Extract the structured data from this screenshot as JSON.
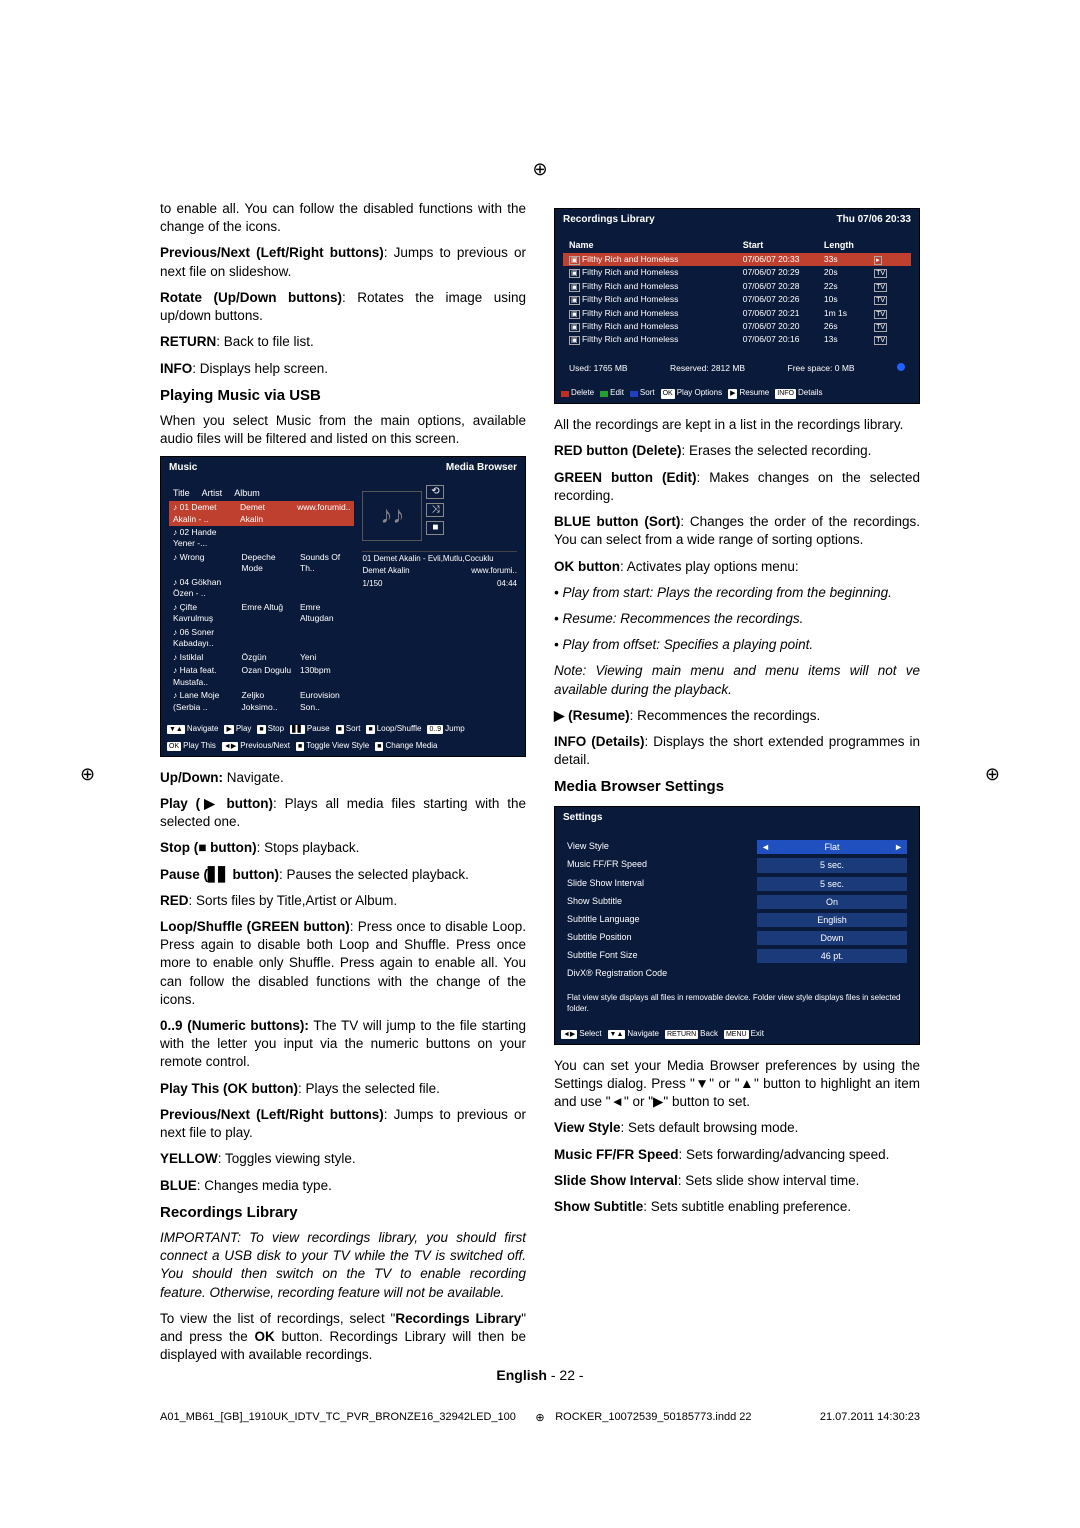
{
  "registration_mark": "⊕",
  "left_col": {
    "intro": "to enable all. You can follow the disabled functions with the change of the icons.",
    "prev_next_bold": "Previous/Next (Left/Right buttons)",
    "prev_next_text": ": Jumps to previous or next file on slideshow.",
    "rotate_bold": "Rotate (Up/Down buttons)",
    "rotate_text": ": Rotates the image using up/down buttons.",
    "return_bold": "RETURN",
    "return_text": ": Back to file list.",
    "info_bold": "INFO",
    "info_text": ": Displays help screen.",
    "heading_music": "Playing Music via USB",
    "music_intro": "When you select Music from the main options, available audio files will be filtered and listed on this screen.",
    "music_screenshot": {
      "title_left": "Music",
      "title_right": "Media Browser",
      "cols": [
        "Title",
        "Artist",
        "Album"
      ],
      "rows": [
        {
          "title": "01 Demet Akalin - ..",
          "artist": "Demet Akalin",
          "album": "www.forumid..",
          "selected": true
        },
        {
          "title": "02 Hande Yener -...",
          "artist": "",
          "album": ""
        },
        {
          "title": "Wrong",
          "artist": "Depeche Mode",
          "album": "Sounds Of Th.."
        },
        {
          "title": "04 Gökhan Özen - ..",
          "artist": "",
          "album": ""
        },
        {
          "title": "Çifte Kavrulmuş",
          "artist": "Emre Altuğ",
          "album": "Emre Altugdan"
        },
        {
          "title": "06 Soner Kabadayı..",
          "artist": "",
          "album": ""
        },
        {
          "title": "Istiklal",
          "artist": "Özgün",
          "album": "Yeni"
        },
        {
          "title": "Hata feat. Mustafa..",
          "artist": "Ozan Dogulu",
          "album": "130bpm"
        },
        {
          "title": "Lane Moje (Serbia ..",
          "artist": "Zeljko Joksimo..",
          "album": "Eurovision Son.."
        }
      ],
      "preview_title": "01 Demet Akalin - Evli,Mutlu,Cocuklu",
      "preview_artist": "Demet Akalin",
      "preview_site": "www.forumi..",
      "preview_track": "1/150",
      "preview_time": "04:44",
      "footer_items": [
        "Navigate",
        "Play",
        "Stop",
        "Pause",
        "Sort",
        "Loop/Shuffle",
        "Jump",
        "Play This",
        "Previous/Next",
        "Toggle View Style",
        "Change Media"
      ]
    },
    "updown_bold": "Up/Down:",
    "updown_text": " Navigate.",
    "play_bold": "Play (▶ button)",
    "play_text": ": Plays all media files starting with the selected one.",
    "stop_bold": "Stop (■ button)",
    "stop_text": ": Stops playback.",
    "pause_bold": "Pause (▋▋ button)",
    "pause_text": ": Pauses the selected playback.",
    "red_bold": "RED",
    "red_text": ": Sorts files by Title,Artist or Album.",
    "loop_bold": "Loop/Shuffle (GREEN button)",
    "loop_text": ": Press once to disable Loop. Press again to disable both Loop and Shuffle. Press once more to enable only Shuffle. Press again to enable all. You can follow the disabled functions with the change of the icons.",
    "num_bold": "0..9 (Numeric buttons):",
    "num_text": " The TV will jump to the file starting with the letter you input via the numeric buttons on your remote control.",
    "playthis_bold": "Play This (OK button)",
    "playthis_text": ": Plays the selected file.",
    "prevnext2_bold": "Previous/Next (Left/Right buttons)",
    "prevnext2_text": ": Jumps to previous or next file to play.",
    "yellow_bold": "YELLOW",
    "yellow_text": ": Toggles viewing style.",
    "blue_bold": "BLUE",
    "blue_text": ": Changes media type.",
    "heading_rec": "Recordings Library",
    "rec_important": "IMPORTANT: To view recordings library, you should first connect a USB disk to your TV while the TV is switched off. You should then switch on the TV to enable recording feature. Otherwise, recording feature will not be available.",
    "rec_view_text_1": "To view the list of recordings, select \"",
    "rec_view_bold": "Recordings Library",
    "rec_view_text_2": "\" and press the ",
    "rec_view_ok": "OK",
    "rec_view_text_3": " button. Recordings Library will then be displayed with available recordings."
  },
  "right_col": {
    "rec_screenshot": {
      "title": "Recordings Library",
      "date": "Thu 07/06 20:33",
      "cols": [
        "Name",
        "Start",
        "Length",
        ""
      ],
      "rows": [
        {
          "name": "Filthy Rich and Homeless",
          "start": "07/06/07  20:33",
          "len": "33s",
          "tag": "▸",
          "selected": true
        },
        {
          "name": "Filthy Rich and Homeless",
          "start": "07/06/07  20:29",
          "len": "20s",
          "tag": "TV"
        },
        {
          "name": "Filthy Rich and Homeless",
          "start": "07/06/07  20:28",
          "len": "22s",
          "tag": "TV"
        },
        {
          "name": "Filthy Rich and Homeless",
          "start": "07/06/07  20:26",
          "len": "10s",
          "tag": "TV"
        },
        {
          "name": "Filthy Rich and Homeless",
          "start": "07/06/07  20:21",
          "len": "1m 1s",
          "tag": "TV"
        },
        {
          "name": "Filthy Rich and Homeless",
          "start": "07/06/07  20:20",
          "len": "26s",
          "tag": "TV"
        },
        {
          "name": "Filthy Rich and Homeless",
          "start": "07/06/07  20:16",
          "len": "13s",
          "tag": "TV"
        }
      ],
      "used": "Used: 1765 MB",
      "reserved": "Reserved: 2812 MB",
      "free": "Free space: 0 MB",
      "footer_items": [
        "Delete",
        "Edit",
        "Sort",
        "Play Options",
        "Resume",
        "Details"
      ],
      "footer_colors": [
        "#c03020",
        "#20a030",
        "#2040c0",
        "#000",
        "#000",
        "#000"
      ],
      "footer_keys": [
        "",
        "",
        "",
        "OK",
        "▶",
        "INFO"
      ]
    },
    "all_rec": "All the recordings are kept in a list in the recordings library.",
    "red_btn_bold": "RED button (Delete)",
    "red_btn_text": ": Erases the selected recording.",
    "green_btn_bold": "GREEN button (Edit)",
    "green_btn_text": ": Makes changes on the selected recording.",
    "blue_btn_bold": "BLUE button (Sort)",
    "blue_btn_text": ": Changes the order of the recordings. You can select from a wide range of sorting options.",
    "ok_btn_bold": "OK button",
    "ok_btn_text": ": Activates play options menu:",
    "bullet1": "• Play from start: Plays the recording from the beginning.",
    "bullet2": "• Resume: Recommences the recordings.",
    "bullet3": "• Play from offset: Specifies a playing point.",
    "note": "Note: Viewing main menu and menu items will not ve available during the playback.",
    "resume_bold": "▶ (Resume)",
    "resume_text": ": Recommences the recordings.",
    "info_det_bold": "INFO (Details)",
    "info_det_text": ": Displays the short extended programmes in detail.",
    "heading_settings": "Media Browser Settings",
    "settings_screenshot": {
      "title": "Settings",
      "rows": [
        {
          "label": "View Style",
          "value": "Flat"
        },
        {
          "label": "Music FF/FR Speed",
          "value": "5 sec."
        },
        {
          "label": "Slide Show Interval",
          "value": "5 sec."
        },
        {
          "label": "Show Subtitle",
          "value": "On"
        },
        {
          "label": "Subtitle Language",
          "value": "English"
        },
        {
          "label": "Subtitle Position",
          "value": "Down"
        },
        {
          "label": "Subtitle Font Size",
          "value": "46 pt."
        },
        {
          "label": "DivX® Registration Code",
          "value": ""
        }
      ],
      "note": "Flat view style displays all files in removable device. Folder view style displays files in selected folder.",
      "footer_items": [
        "Select",
        "Navigate",
        "Back",
        "Exit"
      ],
      "footer_keys": [
        "◄▶",
        "▼▲",
        "RETURN",
        "MENU"
      ]
    },
    "settings_intro": "You can set your Media Browser preferences by using the Settings dialog. Press \"▼\" or \"▲\" button to highlight an item and use \"◄\" or \"▶\" button to set.",
    "view_style_bold": "View Style",
    "view_style_text": ": Sets default browsing mode.",
    "ff_bold": "Music FF/FR Speed",
    "ff_text": ": Sets forwarding/advancing speed.",
    "slide_bold": "Slide Show Interval",
    "slide_text": ": Sets slide show interval time.",
    "sub_bold": "Show Subtitle",
    "sub_text": ": Sets subtitle enabling preference."
  },
  "footer": {
    "lang": "English",
    "page": "  - 22 -"
  },
  "print": {
    "left": "A01_MB61_[GB]_1910UK_IDTV_TC_PVR_BRONZE16_32942LED_100",
    "mid": "ROCKER_10072539_50185773.indd   22",
    "right": "21.07.2011   14:30:23"
  }
}
